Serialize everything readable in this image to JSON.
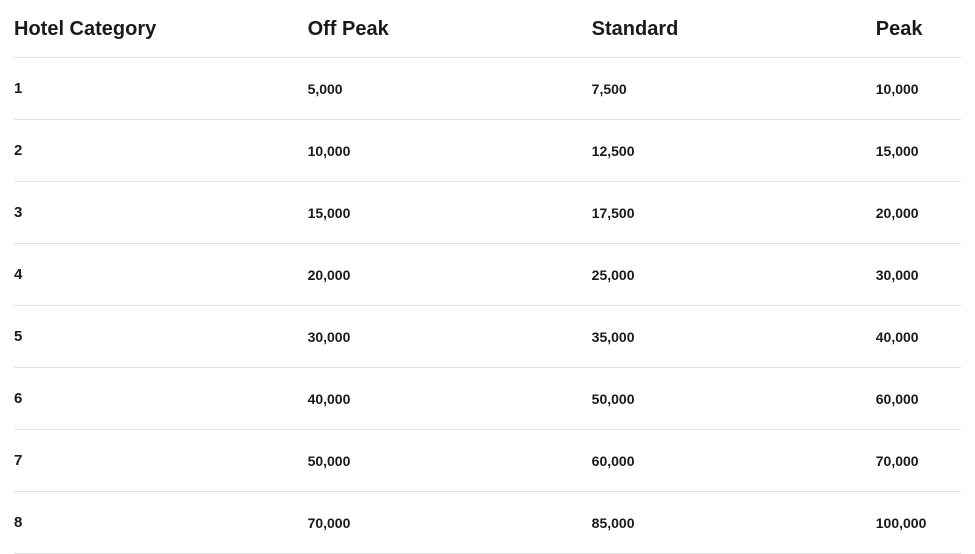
{
  "table": {
    "columns": [
      "Hotel Category",
      "Off Peak",
      "Standard",
      "Peak"
    ],
    "column_widths_pct": [
      31,
      30,
      30,
      9
    ],
    "header_fontsize": 20,
    "header_fontweight": 700,
    "category_fontsize": 15,
    "category_fontweight": 700,
    "value_fontsize": 14,
    "value_fontweight": 600,
    "text_color": "#1a1a1a",
    "border_color": "#e0e0e0",
    "background_color": "#ffffff",
    "row_padding_v": 22,
    "rows": [
      [
        "1",
        "5,000",
        "7,500",
        "10,000"
      ],
      [
        "2",
        "10,000",
        "12,500",
        "15,000"
      ],
      [
        "3",
        "15,000",
        "17,500",
        "20,000"
      ],
      [
        "4",
        "20,000",
        "25,000",
        "30,000"
      ],
      [
        "5",
        "30,000",
        "35,000",
        "40,000"
      ],
      [
        "6",
        "40,000",
        "50,000",
        "60,000"
      ],
      [
        "7",
        "50,000",
        "60,000",
        "70,000"
      ],
      [
        "8",
        "70,000",
        "85,000",
        "100,000"
      ]
    ]
  }
}
